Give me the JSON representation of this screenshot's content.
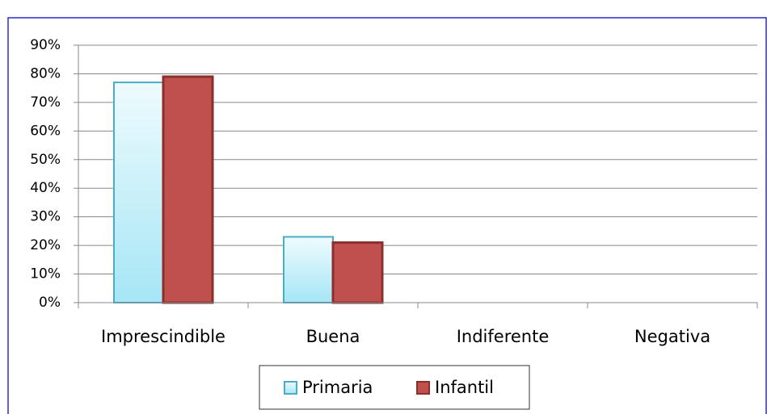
{
  "chart_data": {
    "type": "bar",
    "categories": [
      "Imprescindible",
      "Buena",
      "Indiferente",
      "Negativa"
    ],
    "series": [
      {
        "name": "Primaria",
        "color": "#4bacc6",
        "values": [
          77,
          23,
          0,
          0
        ]
      },
      {
        "name": "Infantil",
        "color": "#c0504d",
        "values": [
          79,
          21,
          0,
          0
        ]
      }
    ],
    "ylim": [
      0,
      90
    ],
    "yticks": [
      {
        "value": 0,
        "label": "0%"
      },
      {
        "value": 10,
        "label": "10%"
      },
      {
        "value": 20,
        "label": "20%"
      },
      {
        "value": 30,
        "label": "30%"
      },
      {
        "value": 40,
        "label": "40%"
      },
      {
        "value": 50,
        "label": "50%"
      },
      {
        "value": 60,
        "label": "60%"
      },
      {
        "value": 70,
        "label": "70%"
      },
      {
        "value": 80,
        "label": "80%"
      },
      {
        "value": 90,
        "label": "90%"
      }
    ],
    "grid": true,
    "legend": "bottom"
  }
}
